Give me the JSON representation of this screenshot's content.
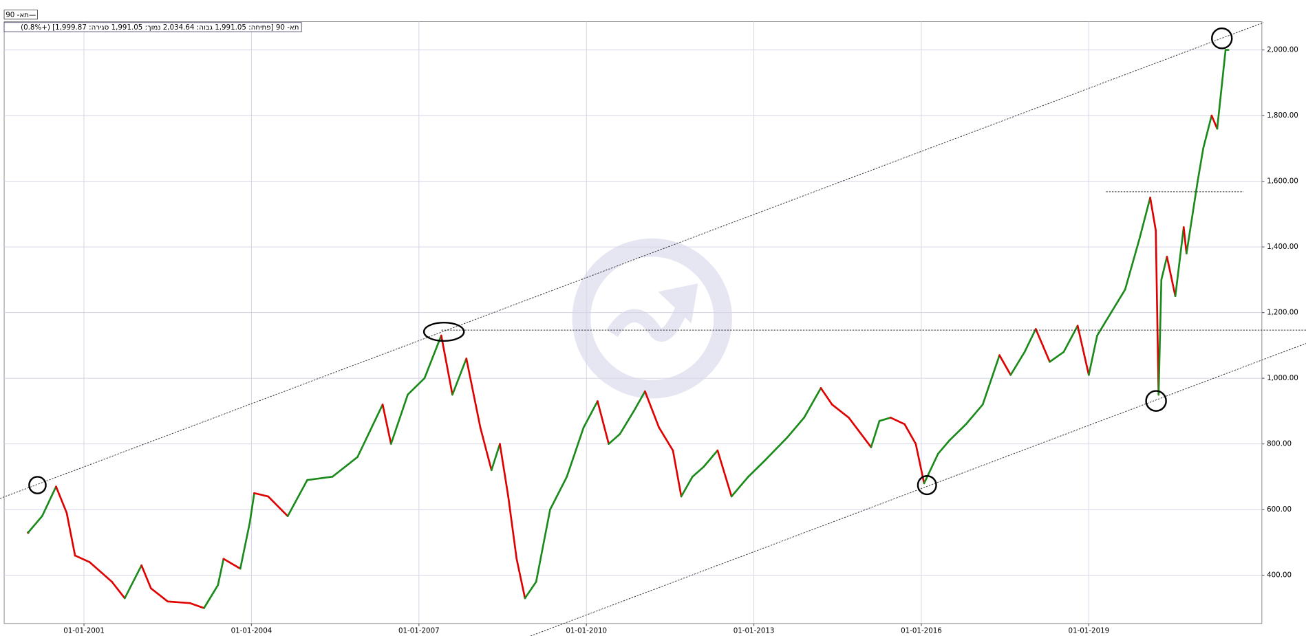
{
  "chart_data": {
    "type": "price",
    "legend_label": "תא- 90—",
    "info": "תא- 90 [פתיחה: 1,991.05  גבוה: 2,034.64  נמוך: 1,991.05  סגירה: 1,999.87] (+0.8%)",
    "up_color": "#1a8a1a",
    "down_color": "#e00000",
    "grid": true,
    "xlim": [
      1999.57,
      2022.1
    ],
    "ylim": [
      253,
      2086
    ],
    "xticks": [
      {
        "value": 2001,
        "label": "01-01-2001"
      },
      {
        "value": 2004,
        "label": "01-01-2004"
      },
      {
        "value": 2007,
        "label": "01-01-2007"
      },
      {
        "value": 2010,
        "label": "01-01-2010"
      },
      {
        "value": 2013,
        "label": "01-01-2013"
      },
      {
        "value": 2016,
        "label": "01-01-2016"
      },
      {
        "value": 2019,
        "label": "01-01-2019"
      }
    ],
    "yticks": [
      {
        "value": 400,
        "label": "400.00"
      },
      {
        "value": 600,
        "label": "600.00"
      },
      {
        "value": 800,
        "label": "800.00"
      },
      {
        "value": 1000,
        "label": "1,000.00"
      },
      {
        "value": 1200,
        "label": "1,200.00"
      },
      {
        "value": 1400,
        "label": "1,400.00"
      },
      {
        "value": 1600,
        "label": "1,600.00"
      },
      {
        "value": 1800,
        "label": "1,800.00"
      },
      {
        "value": 2000,
        "label": "2,000.00"
      }
    ],
    "x": [
      2000.0,
      2000.25,
      2000.5,
      2000.69,
      2000.84,
      2001.1,
      2001.5,
      2001.73,
      2002.03,
      2002.2,
      2002.5,
      2002.9,
      2003.15,
      2003.4,
      2003.5,
      2003.8,
      2003.97,
      2004.05,
      2004.3,
      2004.65,
      2005.0,
      2005.45,
      2005.9,
      2006.35,
      2006.5,
      2006.8,
      2007.1,
      2007.4,
      2007.6,
      2007.85,
      2008.1,
      2008.3,
      2008.45,
      2008.6,
      2008.75,
      2008.9,
      2009.1,
      2009.35,
      2009.65,
      2009.95,
      2010.2,
      2010.4,
      2010.6,
      2010.85,
      2011.05,
      2011.3,
      2011.55,
      2011.7,
      2011.9,
      2012.1,
      2012.35,
      2012.6,
      2012.9,
      2013.2,
      2013.6,
      2013.9,
      2014.2,
      2014.4,
      2014.7,
      2015.1,
      2015.25,
      2015.45,
      2015.7,
      2015.9,
      2016.05,
      2016.3,
      2016.5,
      2016.8,
      2017.1,
      2017.4,
      2017.6,
      2017.85,
      2018.05,
      2018.3,
      2018.55,
      2018.8,
      2019.0,
      2019.15,
      2019.4,
      2019.65,
      2019.9,
      2020.1,
      2020.2,
      2020.25,
      2020.3,
      2020.4,
      2020.55,
      2020.7,
      2020.75,
      2020.95,
      2021.05,
      2021.2,
      2021.3,
      2021.45,
      2021.5
    ],
    "values": [
      530,
      580,
      670,
      590,
      460,
      440,
      380,
      330,
      430,
      360,
      320,
      315,
      300,
      370,
      450,
      420,
      560,
      650,
      640,
      580,
      690,
      700,
      760,
      920,
      800,
      950,
      1000,
      1130,
      950,
      1060,
      850,
      720,
      800,
      640,
      450,
      330,
      380,
      600,
      700,
      850,
      930,
      800,
      830,
      900,
      960,
      850,
      780,
      640,
      700,
      730,
      780,
      640,
      700,
      750,
      820,
      880,
      970,
      920,
      880,
      790,
      870,
      880,
      860,
      800,
      680,
      770,
      810,
      860,
      920,
      1070,
      1010,
      1080,
      1150,
      1050,
      1080,
      1160,
      1010,
      1130,
      1200,
      1270,
      1420,
      1550,
      1450,
      950,
      1300,
      1370,
      1250,
      1460,
      1380,
      1600,
      1700,
      1800,
      1760,
      2000,
      2000
    ]
  }
}
